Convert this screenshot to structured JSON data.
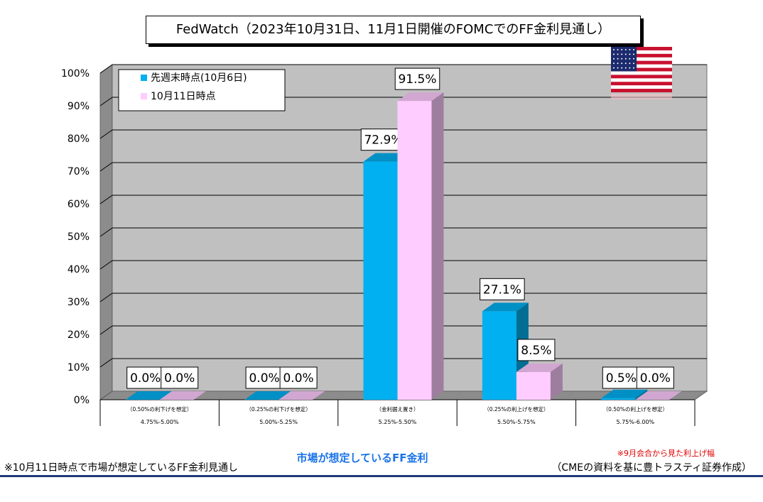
{
  "chart_data": {
    "type": "bar",
    "title": "FedWatch（2023年10月31日、11月1日開催のFOMCでのFF金利見通し）",
    "xlabel": "市場が想定しているFF金利",
    "ylabel": "",
    "ylim": [
      0,
      100
    ],
    "yticks": [
      "0%",
      "10%",
      "20%",
      "30%",
      "40%",
      "50%",
      "60%",
      "70%",
      "80%",
      "90%",
      "100%"
    ],
    "categories": [
      {
        "note": "（0.50%の利下げを想定）",
        "range": "4.75%-5.00%"
      },
      {
        "note": "（0.25%の利下げを想定）",
        "range": "5.00%-5.25%"
      },
      {
        "note": "（金利据え置き）",
        "range": "5.25%-5.50%"
      },
      {
        "note": "（0.25%の利上げを想定）",
        "range": "5.50%-5.75%"
      },
      {
        "note": "（0.50%の利上げを想定）",
        "range": "5.75%-6.00%"
      }
    ],
    "series": [
      {
        "name": "先週末時点(10月6日)",
        "color": "#00b0f0",
        "values": [
          0.0,
          0.0,
          72.9,
          27.1,
          0.5
        ],
        "labels": [
          "0.0%",
          "0.0%",
          "72.9%",
          "27.1%",
          "0.5%"
        ]
      },
      {
        "name": "10月11日時点",
        "color": "#ffccff",
        "values": [
          0.0,
          0.0,
          91.5,
          8.5,
          0.0
        ],
        "labels": [
          "0.0%",
          "0.0%",
          "91.5%",
          "8.5%",
          "0.0%"
        ]
      }
    ],
    "grid": true,
    "legend_position": "top-left"
  },
  "footer": {
    "left_note": "※10月11日時点で市場が想定しているFF金利見通し",
    "red_note": "※9月会合から見た利上げ幅",
    "source": "（CMEの資料を基に豊トラスティ証券作成）"
  },
  "flag_icon": "us-flag-icon"
}
